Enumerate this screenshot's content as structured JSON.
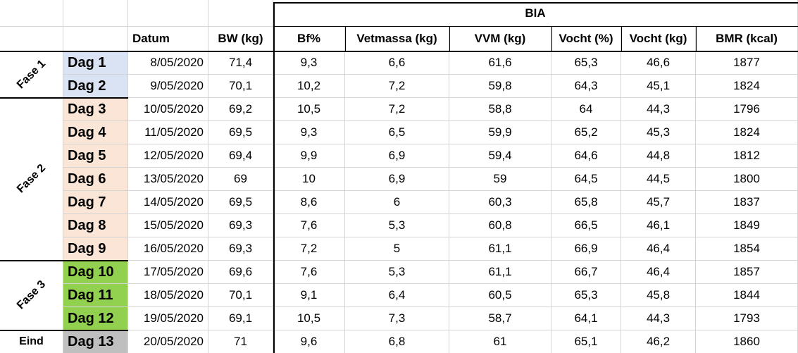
{
  "header": {
    "group": "BIA",
    "columns": [
      "Datum",
      "BW (kg)",
      "Bf%",
      "Vetmassa (kg)",
      "VVM (kg)",
      "Vocht (%)",
      "Vocht (kg)",
      "BMR (kcal)"
    ]
  },
  "phases": [
    "Fase 1",
    "Fase 2",
    "Fase 3",
    "Eind"
  ],
  "rows": [
    {
      "day": "Dag 1",
      "cells": [
        "8/05/2020",
        "71,4",
        "9,3",
        "6,6",
        "61,6",
        "65,3",
        "46,6",
        "1877"
      ]
    },
    {
      "day": "Dag 2",
      "cells": [
        "9/05/2020",
        "70,1",
        "10,2",
        "7,2",
        "59,8",
        "64,3",
        "45,1",
        "1824"
      ]
    },
    {
      "day": "Dag 3",
      "cells": [
        "10/05/2020",
        "69,2",
        "10,5",
        "7,2",
        "58,8",
        "64",
        "44,3",
        "1796"
      ]
    },
    {
      "day": "Dag 4",
      "cells": [
        "11/05/2020",
        "69,5",
        "9,3",
        "6,5",
        "59,9",
        "65,2",
        "45,3",
        "1824"
      ]
    },
    {
      "day": "Dag 5",
      "cells": [
        "12/05/2020",
        "69,4",
        "9,9",
        "6,9",
        "59,4",
        "64,6",
        "44,8",
        "1812"
      ]
    },
    {
      "day": "Dag 6",
      "cells": [
        "13/05/2020",
        "69",
        "10",
        "6,9",
        "59",
        "64,5",
        "44,5",
        "1800"
      ]
    },
    {
      "day": "Dag 7",
      "cells": [
        "14/05/2020",
        "69,5",
        "8,6",
        "6",
        "60,3",
        "65,8",
        "45,7",
        "1837"
      ]
    },
    {
      "day": "Dag 8",
      "cells": [
        "15/05/2020",
        "69,3",
        "7,6",
        "5,3",
        "60,8",
        "66,5",
        "46,1",
        "1849"
      ]
    },
    {
      "day": "Dag 9",
      "cells": [
        "16/05/2020",
        "69,3",
        "7,2",
        "5",
        "61,1",
        "66,9",
        "46,4",
        "1854"
      ]
    },
    {
      "day": "Dag 10",
      "cells": [
        "17/05/2020",
        "69,6",
        "7,6",
        "5,3",
        "61,1",
        "66,7",
        "46,4",
        "1857"
      ]
    },
    {
      "day": "Dag 11",
      "cells": [
        "18/05/2020",
        "70,1",
        "9,1",
        "6,4",
        "60,5",
        "65,3",
        "45,8",
        "1844"
      ]
    },
    {
      "day": "Dag 12",
      "cells": [
        "19/05/2020",
        "69,1",
        "10,5",
        "7,3",
        "58,7",
        "64,1",
        "44,3",
        "1793"
      ]
    },
    {
      "day": "Dag 13",
      "cells": [
        "20/05/2020",
        "71",
        "9,6",
        "6,8",
        "61",
        "65,1",
        "46,2",
        "1860"
      ]
    }
  ]
}
